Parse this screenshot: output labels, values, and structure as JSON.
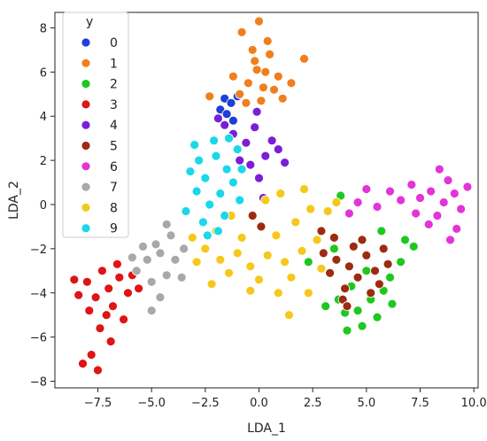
{
  "chart_data": {
    "type": "scatter",
    "title": "",
    "xlabel": "LDA_1",
    "ylabel": "LDA_2",
    "xlim": [
      -9.5,
      10.2
    ],
    "ylim": [
      -8.3,
      8.7
    ],
    "xticks": [
      -7.5,
      -5.0,
      -2.5,
      0.0,
      2.5,
      5.0,
      7.5,
      10.0
    ],
    "xtick_labels": [
      "−7.5",
      "−5.0",
      "−2.5",
      "0.0",
      "2.5",
      "5.0",
      "7.5",
      "10.0"
    ],
    "yticks": [
      -8,
      -6,
      -4,
      -2,
      0,
      2,
      4,
      6,
      8
    ],
    "ytick_labels": [
      "−8",
      "−6",
      "−4",
      "−2",
      "0",
      "2",
      "4",
      "6",
      "8"
    ],
    "grid": false,
    "legend": {
      "title": "y",
      "position": "top-left"
    },
    "series": [
      {
        "name": "0",
        "color": "#1f3fd6",
        "points": [
          [
            -1.6,
            4.8
          ],
          [
            -1.3,
            4.6
          ],
          [
            -1.8,
            4.3
          ],
          [
            -1.0,
            4.9
          ],
          [
            -1.5,
            4.1
          ],
          [
            -1.2,
            3.8
          ]
        ]
      },
      {
        "name": "1",
        "color": "#f07f1c",
        "points": [
          [
            -0.2,
            6.5
          ],
          [
            0.3,
            6.0
          ],
          [
            -0.5,
            5.5
          ],
          [
            0.7,
            5.2
          ],
          [
            -0.9,
            5.0
          ],
          [
            0.1,
            4.7
          ],
          [
            0.9,
            5.8
          ],
          [
            -0.3,
            7.0
          ],
          [
            0.4,
            7.4
          ],
          [
            -1.2,
            5.8
          ],
          [
            1.5,
            5.5
          ],
          [
            0.0,
            8.3
          ],
          [
            -0.8,
            7.8
          ],
          [
            0.5,
            6.8
          ],
          [
            1.1,
            4.8
          ],
          [
            -0.6,
            4.6
          ],
          [
            2.1,
            6.6
          ],
          [
            -2.3,
            4.9
          ],
          [
            0.2,
            5.3
          ],
          [
            -0.1,
            6.1
          ]
        ]
      },
      {
        "name": "2",
        "color": "#1ec81e",
        "points": [
          [
            4.6,
            -4.8
          ],
          [
            5.2,
            -4.3
          ],
          [
            4.0,
            -4.9
          ],
          [
            5.8,
            -3.9
          ],
          [
            4.8,
            -5.5
          ],
          [
            3.7,
            -4.3
          ],
          [
            6.1,
            -3.3
          ],
          [
            6.6,
            -2.6
          ],
          [
            5.5,
            -5.1
          ],
          [
            4.3,
            -3.7
          ],
          [
            6.8,
            -1.6
          ],
          [
            3.1,
            -4.6
          ],
          [
            5.0,
            -3.0
          ],
          [
            6.2,
            -4.5
          ],
          [
            4.1,
            -5.7
          ],
          [
            3.5,
            -2.0
          ],
          [
            7.2,
            -1.9
          ],
          [
            5.7,
            -1.2
          ],
          [
            3.8,
            0.4
          ],
          [
            2.3,
            -2.6
          ]
        ]
      },
      {
        "name": "3",
        "color": "#e01414",
        "points": [
          [
            -7.0,
            -3.8
          ],
          [
            -7.6,
            -4.2
          ],
          [
            -6.5,
            -3.3
          ],
          [
            -8.0,
            -3.5
          ],
          [
            -6.8,
            -4.6
          ],
          [
            -7.3,
            -3.0
          ],
          [
            -6.1,
            -4.0
          ],
          [
            -8.4,
            -4.1
          ],
          [
            -7.1,
            -5.0
          ],
          [
            -6.6,
            -2.7
          ],
          [
            -7.9,
            -4.8
          ],
          [
            -5.9,
            -3.2
          ],
          [
            -7.4,
            -5.6
          ],
          [
            -6.9,
            -6.2
          ],
          [
            -7.8,
            -6.8
          ],
          [
            -8.2,
            -7.2
          ],
          [
            -7.5,
            -7.5
          ],
          [
            -5.6,
            -3.8
          ],
          [
            -6.3,
            -5.2
          ],
          [
            -8.6,
            -3.4
          ]
        ]
      },
      {
        "name": "4",
        "color": "#7a1fd6",
        "points": [
          [
            -1.2,
            3.2
          ],
          [
            -0.6,
            2.8
          ],
          [
            -0.2,
            3.5
          ],
          [
            0.3,
            2.2
          ],
          [
            -0.9,
            2.0
          ],
          [
            0.6,
            2.9
          ],
          [
            -0.4,
            1.8
          ],
          [
            -1.6,
            3.6
          ],
          [
            0.9,
            2.5
          ],
          [
            -0.1,
            4.2
          ],
          [
            1.2,
            1.9
          ],
          [
            0.2,
            0.3
          ],
          [
            0.0,
            1.2
          ],
          [
            -1.9,
            3.9
          ]
        ]
      },
      {
        "name": "5",
        "color": "#9c2b10",
        "points": [
          [
            4.2,
            -2.8
          ],
          [
            5.0,
            -2.3
          ],
          [
            4.6,
            -3.3
          ],
          [
            3.6,
            -2.5
          ],
          [
            5.4,
            -3.0
          ],
          [
            4.0,
            -3.8
          ],
          [
            5.8,
            -2.0
          ],
          [
            3.3,
            -3.1
          ],
          [
            4.8,
            -1.6
          ],
          [
            5.2,
            -4.0
          ],
          [
            4.4,
            -1.9
          ],
          [
            6.0,
            -2.7
          ],
          [
            3.9,
            -4.3
          ],
          [
            3.0,
            -2.2
          ],
          [
            5.6,
            -3.6
          ],
          [
            4.1,
            -4.6
          ],
          [
            2.9,
            -1.2
          ],
          [
            0.1,
            -1.0
          ],
          [
            -0.3,
            -0.5
          ],
          [
            3.5,
            -1.5
          ]
        ]
      },
      {
        "name": "6",
        "color": "#e234d8",
        "points": [
          [
            8.0,
            0.6
          ],
          [
            8.6,
            0.1
          ],
          [
            7.5,
            0.3
          ],
          [
            9.1,
            0.5
          ],
          [
            8.3,
            -0.5
          ],
          [
            7.1,
            0.9
          ],
          [
            8.8,
            1.1
          ],
          [
            6.6,
            0.2
          ],
          [
            9.4,
            -0.2
          ],
          [
            7.9,
            -0.9
          ],
          [
            6.1,
            0.6
          ],
          [
            5.5,
            -0.1
          ],
          [
            9.7,
            0.8
          ],
          [
            8.4,
            1.6
          ],
          [
            5.0,
            0.7
          ],
          [
            4.6,
            0.1
          ],
          [
            9.2,
            -1.1
          ],
          [
            7.3,
            -0.4
          ],
          [
            4.2,
            -0.4
          ],
          [
            8.9,
            -1.6
          ]
        ]
      },
      {
        "name": "7",
        "color": "#a8a8a8",
        "points": [
          [
            -5.2,
            -2.5
          ],
          [
            -4.6,
            -2.2
          ],
          [
            -5.7,
            -3.0
          ],
          [
            -4.3,
            -3.2
          ],
          [
            -5.0,
            -3.5
          ],
          [
            -3.9,
            -2.5
          ],
          [
            -4.8,
            -1.8
          ],
          [
            -5.4,
            -1.9
          ],
          [
            -4.1,
            -1.4
          ],
          [
            -3.6,
            -3.3
          ],
          [
            -4.6,
            -4.2
          ],
          [
            -5.0,
            -4.8
          ],
          [
            -3.5,
            -2.0
          ],
          [
            -5.9,
            -2.4
          ],
          [
            -4.3,
            -0.9
          ]
        ]
      },
      {
        "name": "8",
        "color": "#f7c71a",
        "points": [
          [
            -2.5,
            -2.0
          ],
          [
            -1.8,
            -2.5
          ],
          [
            -1.0,
            -2.2
          ],
          [
            -0.4,
            -2.8
          ],
          [
            0.4,
            -2.3
          ],
          [
            1.2,
            -2.6
          ],
          [
            2.0,
            -2.1
          ],
          [
            2.7,
            -1.6
          ],
          [
            -2.0,
            -1.2
          ],
          [
            -0.8,
            -1.5
          ],
          [
            0.8,
            -1.4
          ],
          [
            1.7,
            -0.8
          ],
          [
            2.4,
            -0.2
          ],
          [
            -1.4,
            -3.1
          ],
          [
            -2.9,
            -2.6
          ],
          [
            0.0,
            -3.4
          ],
          [
            1.5,
            -3.3
          ],
          [
            2.9,
            -2.9
          ],
          [
            -0.4,
            -3.9
          ],
          [
            1.0,
            0.5
          ],
          [
            2.1,
            0.7
          ],
          [
            0.3,
            0.2
          ],
          [
            -1.3,
            -0.5
          ],
          [
            3.2,
            -0.3
          ],
          [
            1.4,
            -5.0
          ],
          [
            -2.2,
            -3.6
          ],
          [
            3.6,
            0.1
          ],
          [
            -3.1,
            -1.5
          ],
          [
            0.9,
            -4.0
          ],
          [
            2.3,
            -4.0
          ]
        ]
      },
      {
        "name": "9",
        "color": "#1ad8e8",
        "points": [
          [
            -2.0,
            2.2
          ],
          [
            -1.5,
            1.6
          ],
          [
            -2.5,
            1.2
          ],
          [
            -1.8,
            0.5
          ],
          [
            -1.2,
            1.0
          ],
          [
            -2.8,
            2.0
          ],
          [
            -1.0,
            2.5
          ],
          [
            -2.3,
            0.0
          ],
          [
            -1.6,
            -0.5
          ],
          [
            -2.9,
            0.6
          ],
          [
            -0.8,
            1.6
          ],
          [
            -2.1,
            2.9
          ],
          [
            -3.2,
            1.5
          ],
          [
            -1.4,
            3.0
          ],
          [
            -2.6,
            -0.8
          ],
          [
            -0.9,
            0.2
          ],
          [
            -3.4,
            -0.3
          ],
          [
            -1.9,
            -1.2
          ],
          [
            -3.0,
            2.7
          ],
          [
            -2.4,
            -1.4
          ]
        ]
      }
    ]
  }
}
